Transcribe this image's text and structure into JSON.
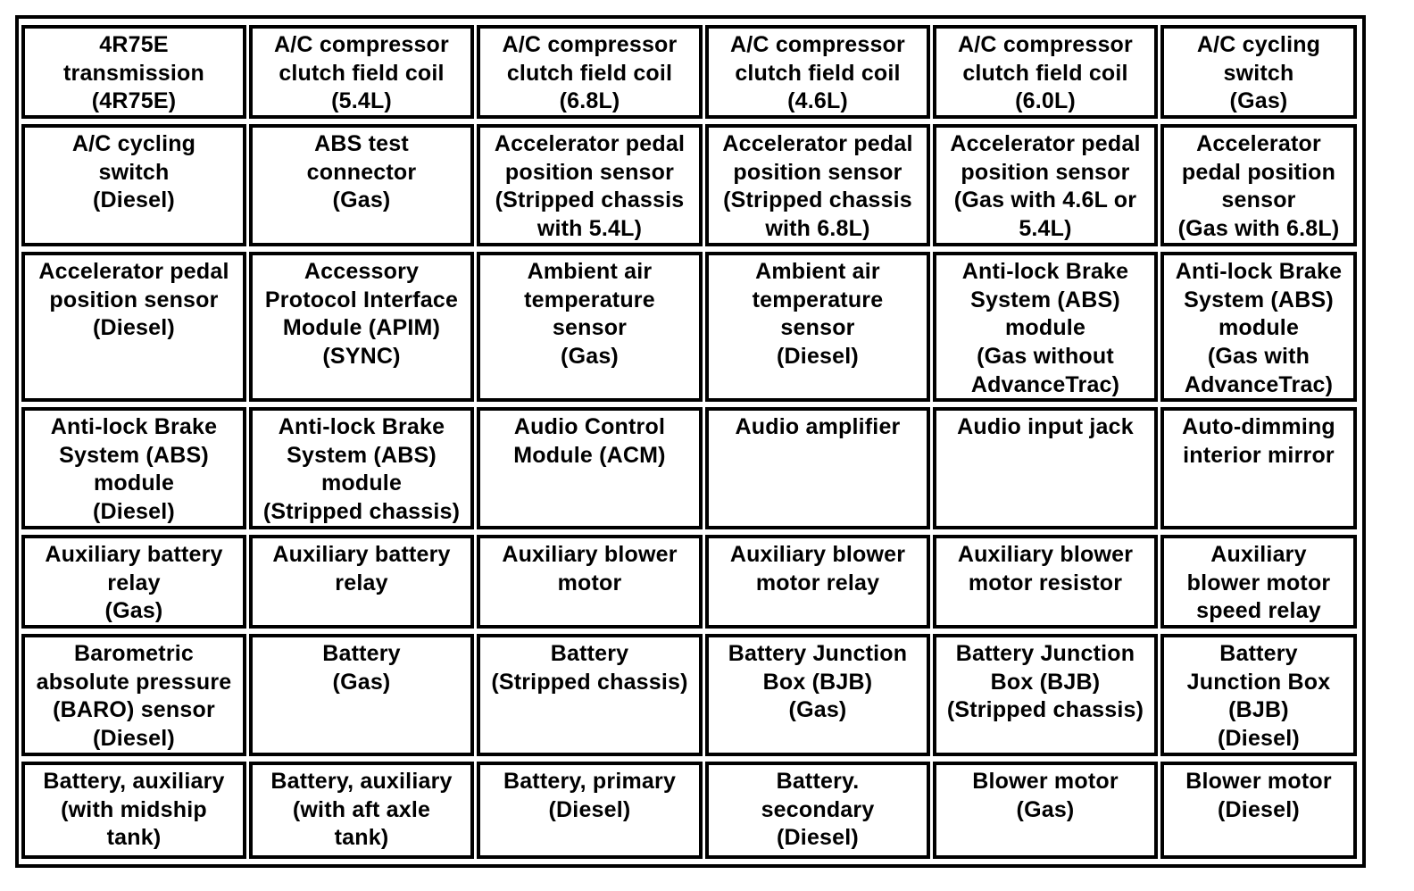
{
  "table": {
    "rows": [
      [
        "4R75E\ntransmission\n(4R75E)",
        "A/C compressor\nclutch field coil\n(5.4L)",
        "A/C compressor\nclutch field coil\n(6.8L)",
        "A/C compressor\nclutch field coil\n(4.6L)",
        "A/C compressor\nclutch field coil\n(6.0L)",
        "A/C cycling\nswitch\n(Gas)"
      ],
      [
        "A/C cycling\nswitch\n(Diesel)",
        "ABS test\nconnector\n(Gas)",
        "Accelerator pedal\nposition sensor\n(Stripped chassis\nwith 5.4L)",
        "Accelerator pedal\nposition sensor\n(Stripped chassis\nwith 6.8L)",
        "Accelerator pedal\nposition sensor\n(Gas with 4.6L or\n5.4L)",
        "Accelerator\npedal position\nsensor\n(Gas with 6.8L)"
      ],
      [
        "Accelerator pedal\nposition sensor\n(Diesel)",
        "Accessory\nProtocol Interface\nModule (APIM)\n(SYNC)",
        "Ambient air\ntemperature\nsensor\n(Gas)",
        "Ambient air\ntemperature\nsensor\n(Diesel)",
        "Anti-lock Brake\nSystem (ABS)\nmodule\n(Gas without\nAdvanceTrac)",
        "Anti-lock Brake\nSystem (ABS)\nmodule\n(Gas with\nAdvanceTrac)"
      ],
      [
        "Anti-lock Brake\nSystem (ABS)\nmodule\n(Diesel)",
        "Anti-lock Brake\nSystem (ABS)\nmodule\n(Stripped chassis)",
        "Audio Control\nModule (ACM)",
        "Audio amplifier",
        "Audio input jack",
        "Auto-dimming\ninterior mirror"
      ],
      [
        "Auxiliary battery\nrelay\n(Gas)",
        "Auxiliary battery\nrelay",
        "Auxiliary blower\nmotor",
        "Auxiliary blower\nmotor relay",
        "Auxiliary blower\nmotor resistor",
        "Auxiliary\nblower motor\nspeed relay"
      ],
      [
        "Barometric\nabsolute pressure\n(BARO) sensor\n(Diesel)",
        "Battery\n(Gas)",
        "Battery\n(Stripped chassis)",
        "Battery Junction\nBox (BJB)\n(Gas)",
        "Battery Junction\nBox (BJB)\n(Stripped chassis)",
        "Battery\nJunction Box\n(BJB)\n(Diesel)"
      ],
      [
        "Battery, auxiliary\n(with midship\ntank)",
        "Battery, auxiliary\n(with aft axle\ntank)",
        "Battery, primary\n(Diesel)",
        "Battery.\nsecondary\n(Diesel)",
        "Blower motor\n(Gas)",
        "Blower motor\n(Diesel)"
      ]
    ]
  }
}
